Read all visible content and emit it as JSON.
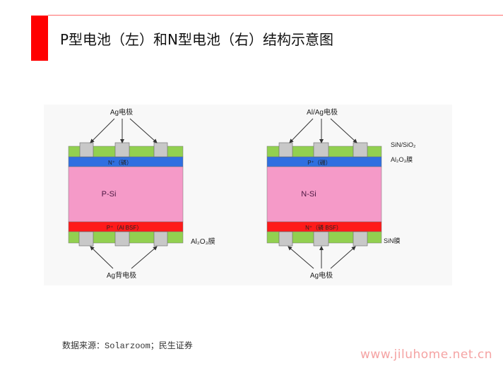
{
  "header": {
    "title": "P型电池（左）和N型电池（右）结构示意图",
    "accent_color": "#ff0000"
  },
  "p_cell": {
    "top_electrode_label": "Ag电极",
    "emitter_label": "N⁺（磷）",
    "base_label": "P-Si",
    "bsf_label": "P⁺（Al BSF）",
    "rear_film_label": "Al₂O₃膜",
    "rear_electrode_label": "Ag背电极"
  },
  "n_cell": {
    "top_electrode_label": "Al/Ag电极",
    "top_film_label_1": "SiN/SiO₂",
    "top_film_label_2": "Al₂O₃膜",
    "emitter_label": "P⁺（硼）",
    "base_label": "N-Si",
    "bsf_label": "N⁺（磷 BSF）",
    "rear_film_label": "SiN膜",
    "rear_electrode_label": "Ag电极"
  },
  "colors": {
    "passivation": "#92d050",
    "emitter": "#2f6fe0",
    "base": "#f59ac8",
    "bsf": "#ff1a1a",
    "electrode": "#c8c8c8"
  },
  "source": "数据来源：Solarzoom；民生证券",
  "watermark": "www.jiluhome.net.cn"
}
